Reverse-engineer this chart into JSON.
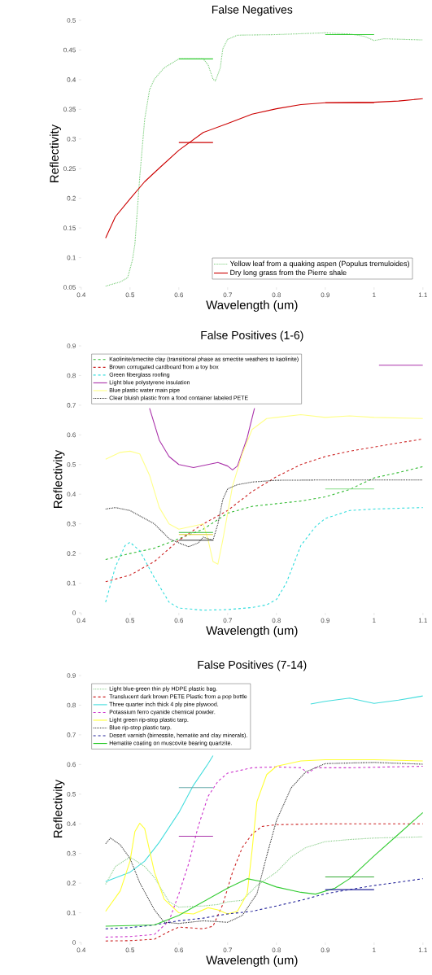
{
  "chart_data": [
    {
      "type": "line",
      "title": "False Negatives",
      "xlabel": "Wavelength (um)",
      "ylabel": "Reflectivity",
      "xlim": [
        0.4,
        1.1
      ],
      "ylim": [
        0.05,
        0.5
      ],
      "xticks": [
        0.4,
        0.5,
        0.6,
        0.7,
        0.8,
        0.9,
        1,
        1.1
      ],
      "yticks": [
        0.05,
        0.1,
        0.15,
        0.2,
        0.25,
        0.3,
        0.35,
        0.4,
        0.45,
        0.5
      ],
      "legend": "bottom right",
      "series": [
        {
          "name": "Yellow leaf from a quaking aspen (Populus tremuloides)",
          "color": "#77cc77",
          "line_style": "dotted",
          "x": [
            0.45,
            0.48,
            0.495,
            0.505,
            0.51,
            0.52,
            0.53,
            0.54,
            0.55,
            0.57,
            0.6,
            0.65,
            0.66,
            0.67,
            0.675,
            0.685,
            0.69,
            0.7,
            0.72,
            0.8,
            0.9,
            0.95,
            0.98,
            1.0,
            1.02,
            1.1
          ],
          "values": [
            0.052,
            0.059,
            0.066,
            0.096,
            0.123,
            0.237,
            0.333,
            0.383,
            0.401,
            0.42,
            0.435,
            0.435,
            0.425,
            0.401,
            0.398,
            0.42,
            0.452,
            0.468,
            0.475,
            0.476,
            0.479,
            0.477,
            0.473,
            0.466,
            0.469,
            0.467
          ]
        },
        {
          "name": "Dry long grass from the Pierre shale",
          "color": "#cc0000",
          "line_style": "solid",
          "x": [
            0.45,
            0.47,
            0.5,
            0.53,
            0.56,
            0.6,
            0.65,
            0.7,
            0.75,
            0.8,
            0.85,
            0.9,
            1.0,
            1.05,
            1.1
          ],
          "values": [
            0.133,
            0.169,
            0.199,
            0.228,
            0.251,
            0.281,
            0.311,
            0.326,
            0.342,
            0.351,
            0.358,
            0.361,
            0.362,
            0.364,
            0.368
          ]
        },
        {
          "color": "#33cc33",
          "line_style": "solid",
          "x": [
            0.6,
            0.67
          ],
          "values": [
            0.435,
            0.435
          ]
        },
        {
          "color": "#33cc33",
          "line_style": "solid",
          "x": [
            0.9,
            1.0
          ],
          "values": [
            0.476,
            0.476
          ]
        },
        {
          "color": "#cc0000",
          "line_style": "solid",
          "x": [
            0.6,
            0.67
          ],
          "values": [
            0.294,
            0.294
          ]
        },
        {
          "color": "#cc0000",
          "line_style": "solid",
          "x": [
            0.9,
            1.0
          ],
          "values": [
            0.361,
            0.361
          ]
        }
      ]
    },
    {
      "type": "line",
      "title": "False Positives (1-6)",
      "xlabel": "Wavelength (um)",
      "ylabel": "Reflectivity",
      "xlim": [
        0.4,
        1.1
      ],
      "ylim": [
        0,
        0.9
      ],
      "xticks": [
        0.4,
        0.5,
        0.6,
        0.7,
        0.8,
        0.9,
        1,
        1.1
      ],
      "yticks": [
        0,
        0.1,
        0.2,
        0.3,
        0.4,
        0.5,
        0.6,
        0.7,
        0.8,
        0.9
      ],
      "legend": "top left",
      "series": [
        {
          "name": "Kaolinite/smectite clay (transitional phase as smectite weathers to kaolinite)",
          "color": "#33bb33",
          "line_style": "dashed",
          "x": [
            0.45,
            0.5,
            0.55,
            0.6,
            0.65,
            0.7,
            0.75,
            0.8,
            0.85,
            0.9,
            0.95,
            1.0,
            1.05,
            1.1
          ],
          "values": [
            0.18,
            0.2,
            0.218,
            0.25,
            0.282,
            0.336,
            0.359,
            0.368,
            0.377,
            0.391,
            0.416,
            0.455,
            0.473,
            0.493
          ]
        },
        {
          "name": "Brown corrugated cardboard from a toy box",
          "color": "#cc2222",
          "line_style": "dashed",
          "x": [
            0.45,
            0.5,
            0.55,
            0.6,
            0.65,
            0.7,
            0.75,
            0.8,
            0.85,
            0.9,
            0.95,
            1.0,
            1.05,
            1.1
          ],
          "values": [
            0.105,
            0.127,
            0.173,
            0.245,
            0.3,
            0.345,
            0.409,
            0.459,
            0.5,
            0.527,
            0.545,
            0.559,
            0.573,
            0.586
          ]
        },
        {
          "name": "Green fiberglass roofing",
          "color": "#33dddd",
          "line_style": "dashed",
          "x": [
            0.45,
            0.47,
            0.49,
            0.5,
            0.52,
            0.55,
            0.58,
            0.6,
            0.65,
            0.7,
            0.75,
            0.78,
            0.8,
            0.82,
            0.85,
            0.88,
            0.9,
            0.95,
            1.0,
            1.1
          ],
          "values": [
            0.036,
            0.155,
            0.227,
            0.238,
            0.209,
            0.118,
            0.036,
            0.016,
            0.009,
            0.011,
            0.018,
            0.027,
            0.045,
            0.1,
            0.227,
            0.291,
            0.318,
            0.345,
            0.35,
            0.355
          ]
        },
        {
          "name": "Light blue polystyrene insulation",
          "color": "#aa33aa",
          "line_style": "solid",
          "x": [
            0.54,
            0.56,
            0.58,
            0.6,
            0.63,
            0.66,
            0.68,
            0.7,
            0.71,
            0.72,
            0.74,
            0.755,
            0.8,
            1.01,
            1.1
          ],
          "values": [
            0.69,
            0.582,
            0.527,
            0.5,
            0.49,
            0.5,
            0.507,
            0.495,
            0.482,
            0.495,
            0.59,
            0.69,
            null,
            0.835,
            0.835
          ]
        },
        {
          "name": "Blue plastic water main pipe",
          "color": "#ffff88",
          "line_style": "solid",
          "x": [
            0.45,
            0.48,
            0.5,
            0.52,
            0.54,
            0.56,
            0.58,
            0.6,
            0.65,
            0.66,
            0.67,
            0.68,
            0.69,
            0.71,
            0.73,
            0.75,
            0.78,
            0.8,
            0.85,
            0.9,
            0.95,
            1.0,
            1.1
          ],
          "values": [
            0.518,
            0.541,
            0.545,
            0.536,
            0.464,
            0.355,
            0.3,
            0.282,
            0.3,
            0.245,
            0.173,
            0.164,
            0.245,
            0.427,
            0.536,
            0.618,
            0.655,
            0.659,
            0.668,
            0.659,
            0.664,
            0.659,
            0.655
          ]
        },
        {
          "name": "Clear bluish plastic from a food container labeled PETE",
          "color": "#333333",
          "line_style": "dotted",
          "x": [
            0.45,
            0.47,
            0.5,
            0.55,
            0.58,
            0.6,
            0.62,
            0.64,
            0.65,
            0.67,
            0.68,
            0.69,
            0.7,
            0.72,
            0.75,
            0.8,
            0.9,
            1.0,
            1.1
          ],
          "values": [
            0.35,
            0.355,
            0.345,
            0.3,
            0.25,
            0.236,
            0.223,
            0.236,
            0.255,
            0.245,
            0.3,
            0.382,
            0.418,
            0.432,
            0.441,
            0.447,
            0.448,
            0.448,
            0.448
          ]
        },
        {
          "color": "#33bb33",
          "line_style": "solid",
          "x": [
            0.6,
            0.67
          ],
          "values": [
            0.271,
            0.271
          ]
        },
        {
          "color": "#ddcc33",
          "line_style": "solid",
          "x": [
            0.6,
            0.67
          ],
          "values": [
            0.264,
            0.264
          ]
        },
        {
          "color": "#333333",
          "line_style": "solid",
          "x": [
            0.6,
            0.67
          ],
          "values": [
            0.245,
            0.245
          ]
        },
        {
          "color": "#88dd88",
          "line_style": "solid",
          "x": [
            0.9,
            1.0
          ],
          "values": [
            0.418,
            0.418
          ]
        }
      ]
    },
    {
      "type": "line",
      "title": "False Positives (7-14)",
      "xlabel": "Wavelength (um)",
      "ylabel": "Reflectivity",
      "xlim": [
        0.4,
        1.1
      ],
      "ylim": [
        0,
        0.9
      ],
      "xticks": [
        0.4,
        0.5,
        0.6,
        0.7,
        0.8,
        0.9,
        1,
        1.1
      ],
      "yticks": [
        0,
        0.1,
        0.2,
        0.3,
        0.4,
        0.5,
        0.6,
        0.7,
        0.8,
        0.9
      ],
      "legend": "top left",
      "series": [
        {
          "name": "Light blue-green thin ply HDPE plastic bag.",
          "color": "#88cc88",
          "line_style": "dotted",
          "x": [
            0.45,
            0.47,
            0.5,
            0.53,
            0.55,
            0.58,
            0.6,
            0.65,
            0.68,
            0.7,
            0.73,
            0.76,
            0.8,
            0.83,
            0.86,
            0.9,
            0.95,
            1.0,
            1.1
          ],
          "values": [
            0.196,
            0.256,
            0.288,
            0.256,
            0.219,
            0.137,
            0.119,
            0.123,
            0.128,
            0.137,
            0.142,
            0.192,
            0.237,
            0.288,
            0.32,
            0.34,
            0.347,
            0.352,
            0.356
          ]
        },
        {
          "name": "Translucent dark brown PETE Plastic from a pop bottle",
          "color": "#cc2222",
          "line_style": "dashed",
          "x": [
            0.45,
            0.5,
            0.55,
            0.58,
            0.6,
            0.65,
            0.67,
            0.69,
            0.71,
            0.73,
            0.75,
            0.77,
            0.8,
            0.9,
            1.1
          ],
          "values": [
            0.005,
            0.006,
            0.011,
            0.037,
            0.052,
            0.046,
            0.055,
            0.128,
            0.237,
            0.32,
            0.365,
            0.391,
            0.397,
            0.4,
            0.4
          ]
        },
        {
          "name": "Three quarter inch thick 4 ply pine plywood.",
          "color": "#44dddd",
          "line_style": "solid",
          "x": [
            0.45,
            0.5,
            0.53,
            0.56,
            0.6,
            0.63,
            0.66,
            0.67,
            0.75,
            0.87,
            0.9,
            0.95,
            0.98,
            1.0,
            1.05,
            1.1
          ],
          "values": [
            0.205,
            0.237,
            0.274,
            0.338,
            0.438,
            0.53,
            0.603,
            0.63,
            null,
            0.804,
            0.813,
            0.824,
            0.813,
            0.806,
            0.817,
            0.831
          ]
        },
        {
          "name": "Potassium ferro cyanide chemical powder.",
          "color": "#cc33cc",
          "line_style": "dashed",
          "x": [
            0.45,
            0.5,
            0.55,
            0.58,
            0.6,
            0.62,
            0.64,
            0.66,
            0.68,
            0.7,
            0.75,
            0.8,
            0.85,
            0.865,
            0.88,
            0.95,
            1.1
          ],
          "values": [
            0.018,
            0.02,
            0.027,
            0.073,
            0.164,
            0.265,
            0.393,
            0.493,
            0.543,
            0.571,
            0.589,
            0.592,
            0.589,
            0.571,
            0.589,
            0.589,
            0.594
          ]
        },
        {
          "name": "Light green rip-stop plastic tarp.",
          "color": "#ffff33",
          "line_style": "solid",
          "x": [
            0.45,
            0.48,
            0.5,
            0.51,
            0.52,
            0.53,
            0.55,
            0.57,
            0.6,
            0.63,
            0.66,
            0.68,
            0.7,
            0.72,
            0.74,
            0.75,
            0.76,
            0.78,
            0.8,
            0.85,
            0.9,
            1.0,
            1.1
          ],
          "values": [
            0.105,
            0.174,
            0.274,
            0.374,
            0.402,
            0.384,
            0.237,
            0.146,
            0.1,
            0.096,
            0.117,
            0.11,
            0.096,
            0.105,
            0.164,
            0.31,
            0.475,
            0.566,
            0.594,
            0.612,
            0.616,
            0.616,
            0.612
          ]
        },
        {
          "name": "Blue rip-stop plastic tarp.",
          "color": "#333333",
          "line_style": "dotted",
          "x": [
            0.45,
            0.46,
            0.48,
            0.5,
            0.52,
            0.55,
            0.57,
            0.6,
            0.65,
            0.7,
            0.73,
            0.76,
            0.78,
            0.8,
            0.83,
            0.86,
            0.9,
            1.0,
            1.1
          ],
          "values": [
            0.333,
            0.352,
            0.329,
            0.283,
            0.201,
            0.11,
            0.068,
            0.064,
            0.073,
            0.068,
            0.091,
            0.164,
            0.292,
            0.411,
            0.521,
            0.575,
            0.603,
            0.607,
            0.601
          ]
        },
        {
          "name": "Desert varnish (birnessite, hematite and clay minerals).",
          "color": "#222299",
          "line_style": "dashed",
          "x": [
            0.45,
            0.5,
            0.55,
            0.6,
            0.65,
            0.7,
            0.75,
            0.8,
            0.85,
            0.9,
            0.95,
            1.0,
            1.05,
            1.1
          ],
          "values": [
            0.046,
            0.05,
            0.059,
            0.073,
            0.082,
            0.096,
            0.105,
            0.123,
            0.142,
            0.164,
            0.178,
            0.192,
            0.203,
            0.215
          ]
        },
        {
          "name": "Hematite coating on muscovite bearing quartzite.",
          "color": "#33cc33",
          "line_style": "solid",
          "x": [
            0.45,
            0.5,
            0.55,
            0.6,
            0.65,
            0.7,
            0.74,
            0.77,
            0.8,
            0.85,
            0.88,
            0.92,
            0.95,
            1.0,
            1.05,
            1.1
          ],
          "values": [
            0.055,
            0.057,
            0.059,
            0.091,
            0.137,
            0.183,
            0.215,
            0.205,
            0.187,
            0.169,
            0.163,
            0.183,
            0.215,
            0.292,
            0.365,
            0.438
          ]
        },
        {
          "color": "#66aaaa",
          "line_style": "solid",
          "x": [
            0.6,
            0.67
          ],
          "values": [
            0.522,
            0.522
          ]
        },
        {
          "color": "#aa33aa",
          "line_style": "solid",
          "x": [
            0.6,
            0.67
          ],
          "values": [
            0.358,
            0.358
          ]
        },
        {
          "color": "#33aa33",
          "line_style": "solid",
          "x": [
            0.9,
            1.0
          ],
          "values": [
            0.221,
            0.221
          ]
        },
        {
          "color": "#222299",
          "line_style": "solid",
          "x": [
            0.9,
            1.0
          ],
          "values": [
            0.178,
            0.178
          ]
        }
      ]
    }
  ]
}
